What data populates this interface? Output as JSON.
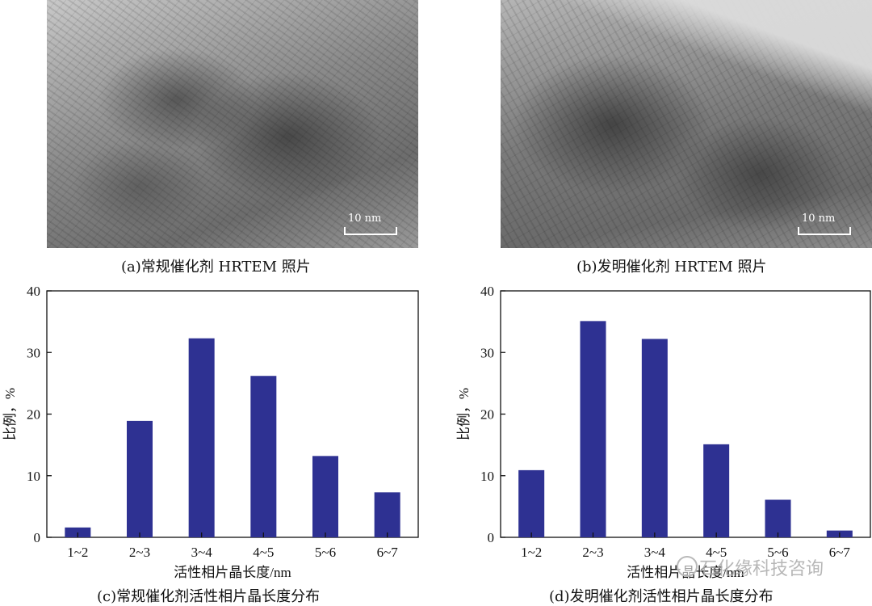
{
  "panels": {
    "a": {
      "caption": "(a)常规催化剂 HRTEM 照片",
      "scale": "10 nm"
    },
    "b": {
      "caption": "(b)发明催化剂 HRTEM 照片",
      "scale": "10 nm"
    },
    "c": {
      "caption": "(c)常规催化剂活性相片晶长度分布"
    },
    "d": {
      "caption": "(d)发明催化剂活性相片晶长度分布"
    }
  },
  "watermark": "石化缘科技咨询",
  "chart_data": [
    {
      "type": "bar",
      "categories": [
        "1~2",
        "2~3",
        "3~4",
        "4~5",
        "5~6",
        "6~7"
      ],
      "values": [
        1.6,
        18.9,
        32.3,
        26.2,
        13.2,
        7.3
      ],
      "xlabel": "活性相片晶长度/nm",
      "ylabel": "比例，%",
      "ylim": [
        0,
        40
      ],
      "yticks": [
        0,
        10,
        20,
        30,
        40
      ],
      "bar_color": "#2e3192"
    },
    {
      "type": "bar",
      "categories": [
        "1~2",
        "2~3",
        "3~4",
        "4~5",
        "5~6",
        "6~7"
      ],
      "values": [
        10.9,
        35.1,
        32.2,
        15.1,
        6.1,
        1.1
      ],
      "xlabel": "活性相片晶长度/nm",
      "ylabel": "比例，%",
      "ylim": [
        0,
        40
      ],
      "yticks": [
        0,
        10,
        20,
        30,
        40
      ],
      "bar_color": "#2e3192"
    }
  ]
}
